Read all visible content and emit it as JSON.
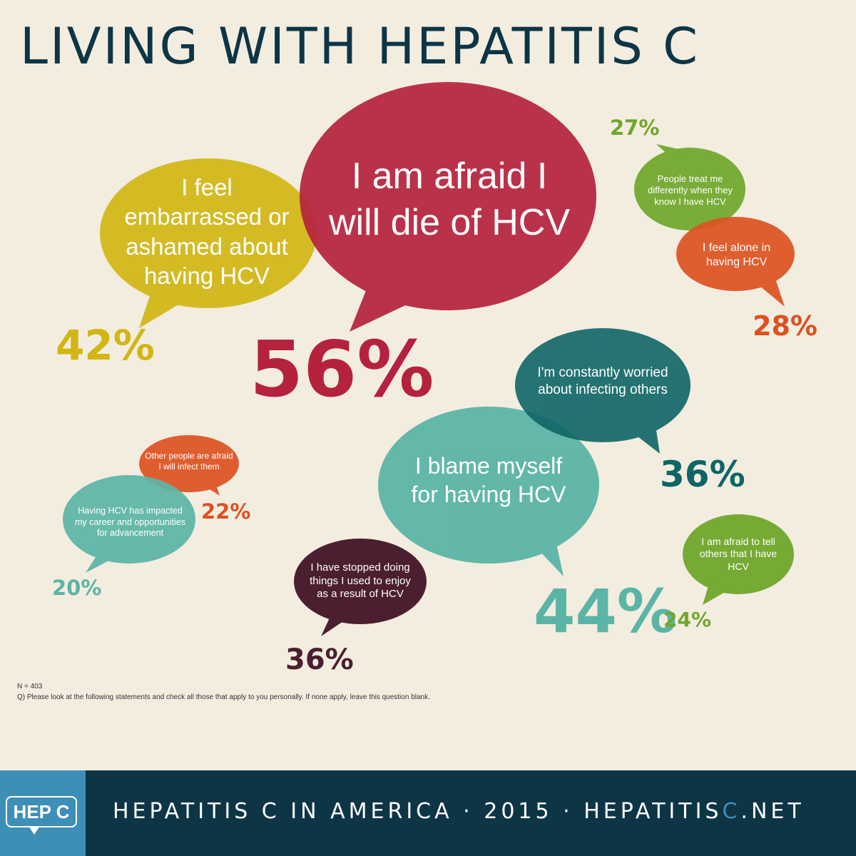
{
  "title": "LIVING WITH HEPATITIS C",
  "colors": {
    "background": "#f3ede0",
    "navy": "#0d3546",
    "crimson": "#b5223d",
    "mustard": "#d1b614",
    "green": "#6fa72b",
    "orange": "#dd5121",
    "teal_dark": "#0e6566",
    "teal_light": "#5bb5a6",
    "plum": "#4b1f2f",
    "blue": "#3d8fb8"
  },
  "statements": [
    {
      "id": "afraid-die",
      "text": "I am afraid I will die of HCV",
      "percent": "56%"
    },
    {
      "id": "embarrassed",
      "text": "I feel embarrassed or ashamed about having HCV",
      "percent": "42%"
    },
    {
      "id": "treated-differently",
      "text": "People treat me differently when they know I have HCV",
      "percent": "27%"
    },
    {
      "id": "feel-alone",
      "text": "I feel alone in having HCV",
      "percent": "28%"
    },
    {
      "id": "worried-infecting",
      "text": "I'm constantly worried about infecting others",
      "percent": "36%"
    },
    {
      "id": "blame-myself",
      "text": "I blame myself for having HCV",
      "percent": "44%"
    },
    {
      "id": "afraid-to-tell",
      "text": "I am afraid to tell others that I have HCV",
      "percent": "24%"
    },
    {
      "id": "stopped-doing",
      "text": "I have stopped doing things I used to enjoy as a result of HCV",
      "percent": "36%"
    },
    {
      "id": "others-afraid",
      "text": "Other people are afraid I will infect them",
      "percent": "22%"
    },
    {
      "id": "career-impact",
      "text": "Having HCV has impacted my career and opportunities for advancement",
      "percent": "20%"
    }
  ],
  "notes": {
    "sample": "N = 403",
    "question": "Q) Please look at the following statements and check all those that apply to you personally. If none apply, leave this question blank."
  },
  "footer": {
    "logo": "HEP C",
    "text_main": "HEPATITIS C IN AMERICA · 2015 · HEPATITIS",
    "text_c": "C",
    "text_end": ".NET"
  }
}
